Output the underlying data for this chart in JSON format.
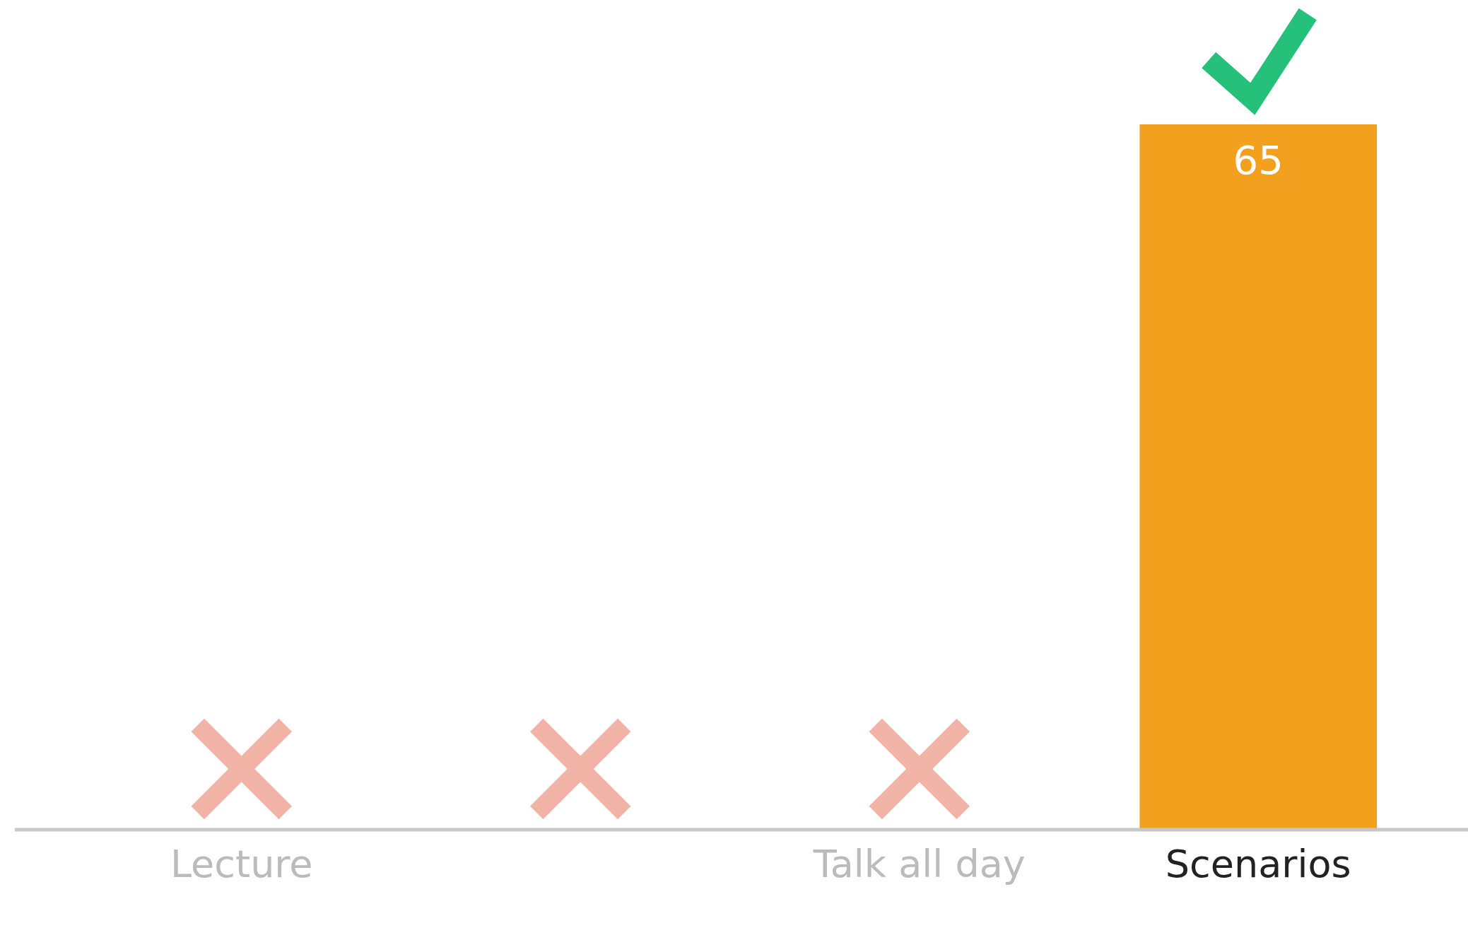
{
  "chart_data": {
    "type": "bar",
    "categories": [
      "Lecture",
      null,
      "Talk all day",
      "Scenarios"
    ],
    "values": [
      0,
      0,
      0,
      65
    ],
    "color": "#f2a01e",
    "value_labels": [
      null,
      null,
      null,
      "65"
    ]
  }
}
